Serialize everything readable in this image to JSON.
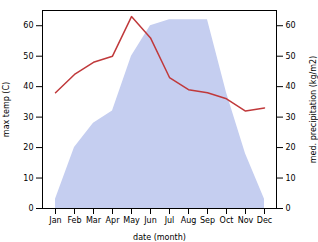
{
  "chart_data": {
    "type": "line",
    "categories": [
      "Jan",
      "Feb",
      "Mar",
      "Apr",
      "May",
      "Jun",
      "Jul",
      "Aug",
      "Sep",
      "Oct",
      "Nov",
      "Dec"
    ],
    "xlabel": "date (month)",
    "ylabel": "max temp (C)",
    "y2label": "med. precipitation (kg/m2)",
    "ylim": [
      0,
      65
    ],
    "yticks": [
      0,
      10,
      20,
      30,
      40,
      50,
      60
    ],
    "y2lim": [
      0,
      65
    ],
    "y2ticks": [
      0,
      10,
      20,
      30,
      40,
      50,
      60
    ],
    "grid": false,
    "series": [
      {
        "type": "area",
        "axis": "y2",
        "color": "#c5cef0",
        "values": [
          3,
          20,
          28,
          32,
          50,
          60,
          62,
          62,
          62,
          38,
          18,
          3
        ]
      },
      {
        "type": "line",
        "color": "#c0393b",
        "values": [
          38,
          44,
          48,
          50,
          63,
          56,
          43,
          39,
          38,
          36,
          32,
          33
        ]
      }
    ]
  }
}
